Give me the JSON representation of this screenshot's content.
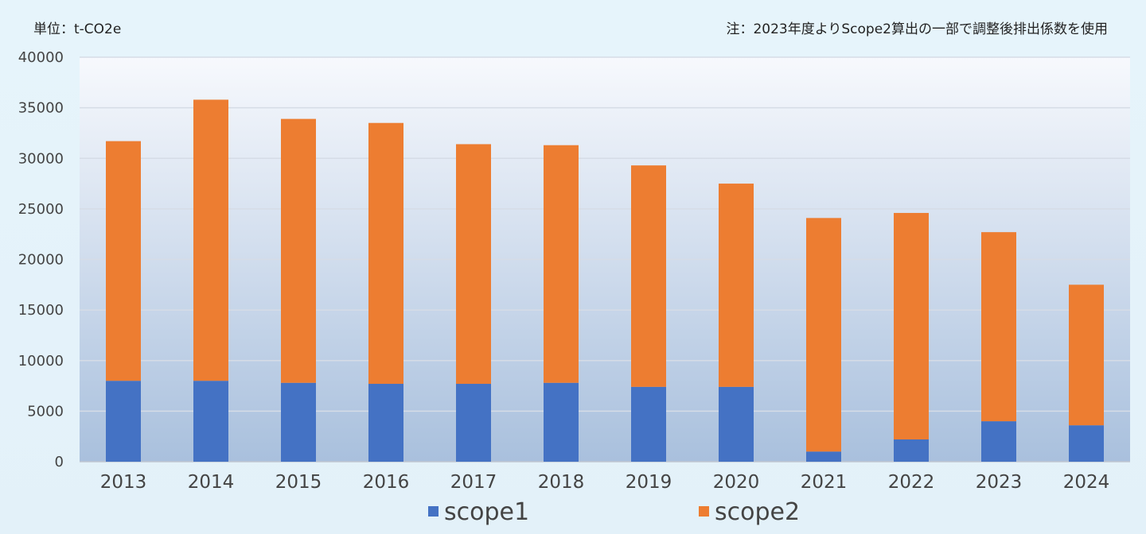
{
  "chart_data": {
    "type": "bar",
    "stacked": true,
    "unit_label": "単位：t-CO2e",
    "note": "注：2023年度よりScope2算出の一部で調整後排出係数を使用",
    "categories": [
      "2013",
      "2014",
      "2015",
      "2016",
      "2017",
      "2018",
      "2019",
      "2020",
      "2021",
      "2022",
      "2023",
      "2024"
    ],
    "series": [
      {
        "name": "scope1",
        "color": "#4472c4",
        "values": [
          8000,
          8000,
          7800,
          7700,
          7700,
          7800,
          7400,
          7400,
          1000,
          2200,
          4000,
          3600
        ]
      },
      {
        "name": "scope2",
        "color": "#ed7d31",
        "values": [
          23700,
          27800,
          26100,
          25800,
          23700,
          23500,
          21900,
          20100,
          23100,
          22400,
          18700,
          13900
        ]
      }
    ],
    "yticks": [
      "0",
      "5000",
      "10000",
      "15000",
      "20000",
      "25000",
      "30000",
      "35000",
      "40000"
    ],
    "ylim": [
      0,
      40000
    ],
    "grid": true,
    "legend_position": "bottom"
  }
}
